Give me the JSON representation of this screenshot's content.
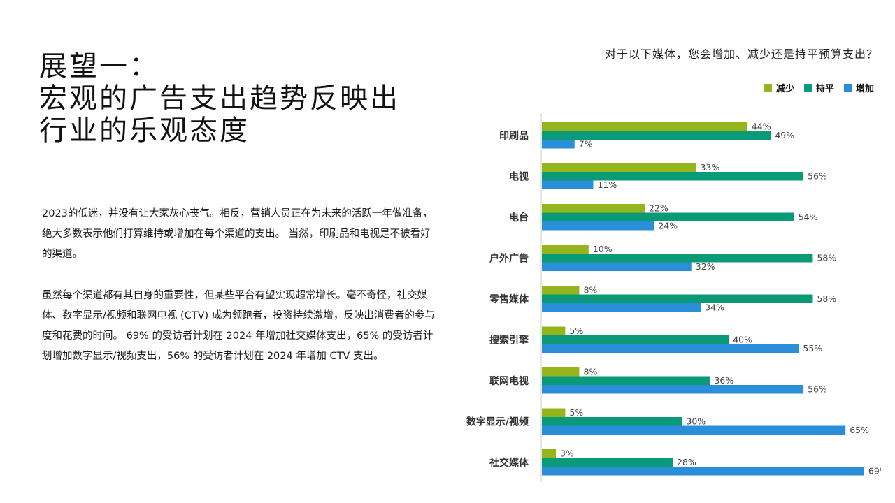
{
  "heading": {
    "line1": "展望一：",
    "line2": "宏观的广告支出趋势反映出",
    "line3": "行业的乐观态度"
  },
  "body": {
    "paragraph1": "2023的低迷，并没有让大家灰心丧气。相反，营销人员正在为未来的活跃一年做准备，绝大多数表示他们打算维持或增加在每个渠道的支出。 当然，印刷品和电视是不被看好的渠道。",
    "paragraph2": "虽然每个渠道都有其自身的重要性，但某些平台有望实现超常增长。毫不奇怪，社交媒体、数字显示/视频和联网电视 (CTV) 成为领跑者，投资持续激增，反映出消费者的参与度和花费的时间。 69% 的受访者计划在 2024 年增加社交媒体支出，65% 的受访者计划增加数字显示/视频支出，56% 的受访者计划在 2024 年增加 CTV 支出。"
  },
  "chart_data": {
    "type": "bar",
    "orientation": "horizontal",
    "title": "对于以下媒体，您会增加、减少还是持平预算支出？",
    "categories": [
      "印刷品",
      "电视",
      "电台",
      "户外广告",
      "零售媒体",
      "搜索引擎",
      "联网电视",
      "数字显示/视频",
      "社交媒体"
    ],
    "series": [
      {
        "name": "减少",
        "color": "#95b51c",
        "values": [
          44,
          33,
          22,
          10,
          8,
          5,
          8,
          5,
          3
        ]
      },
      {
        "name": "持平",
        "color": "#0a9a78",
        "values": [
          49,
          56,
          54,
          58,
          58,
          40,
          36,
          30,
          28
        ]
      },
      {
        "name": "增加",
        "color": "#2a8fd8",
        "values": [
          7,
          11,
          24,
          32,
          34,
          55,
          56,
          65,
          69
        ]
      }
    ],
    "value_suffix": "%",
    "xlim": [
      0,
      100
    ],
    "grid": false,
    "legend_position": "top-right"
  }
}
